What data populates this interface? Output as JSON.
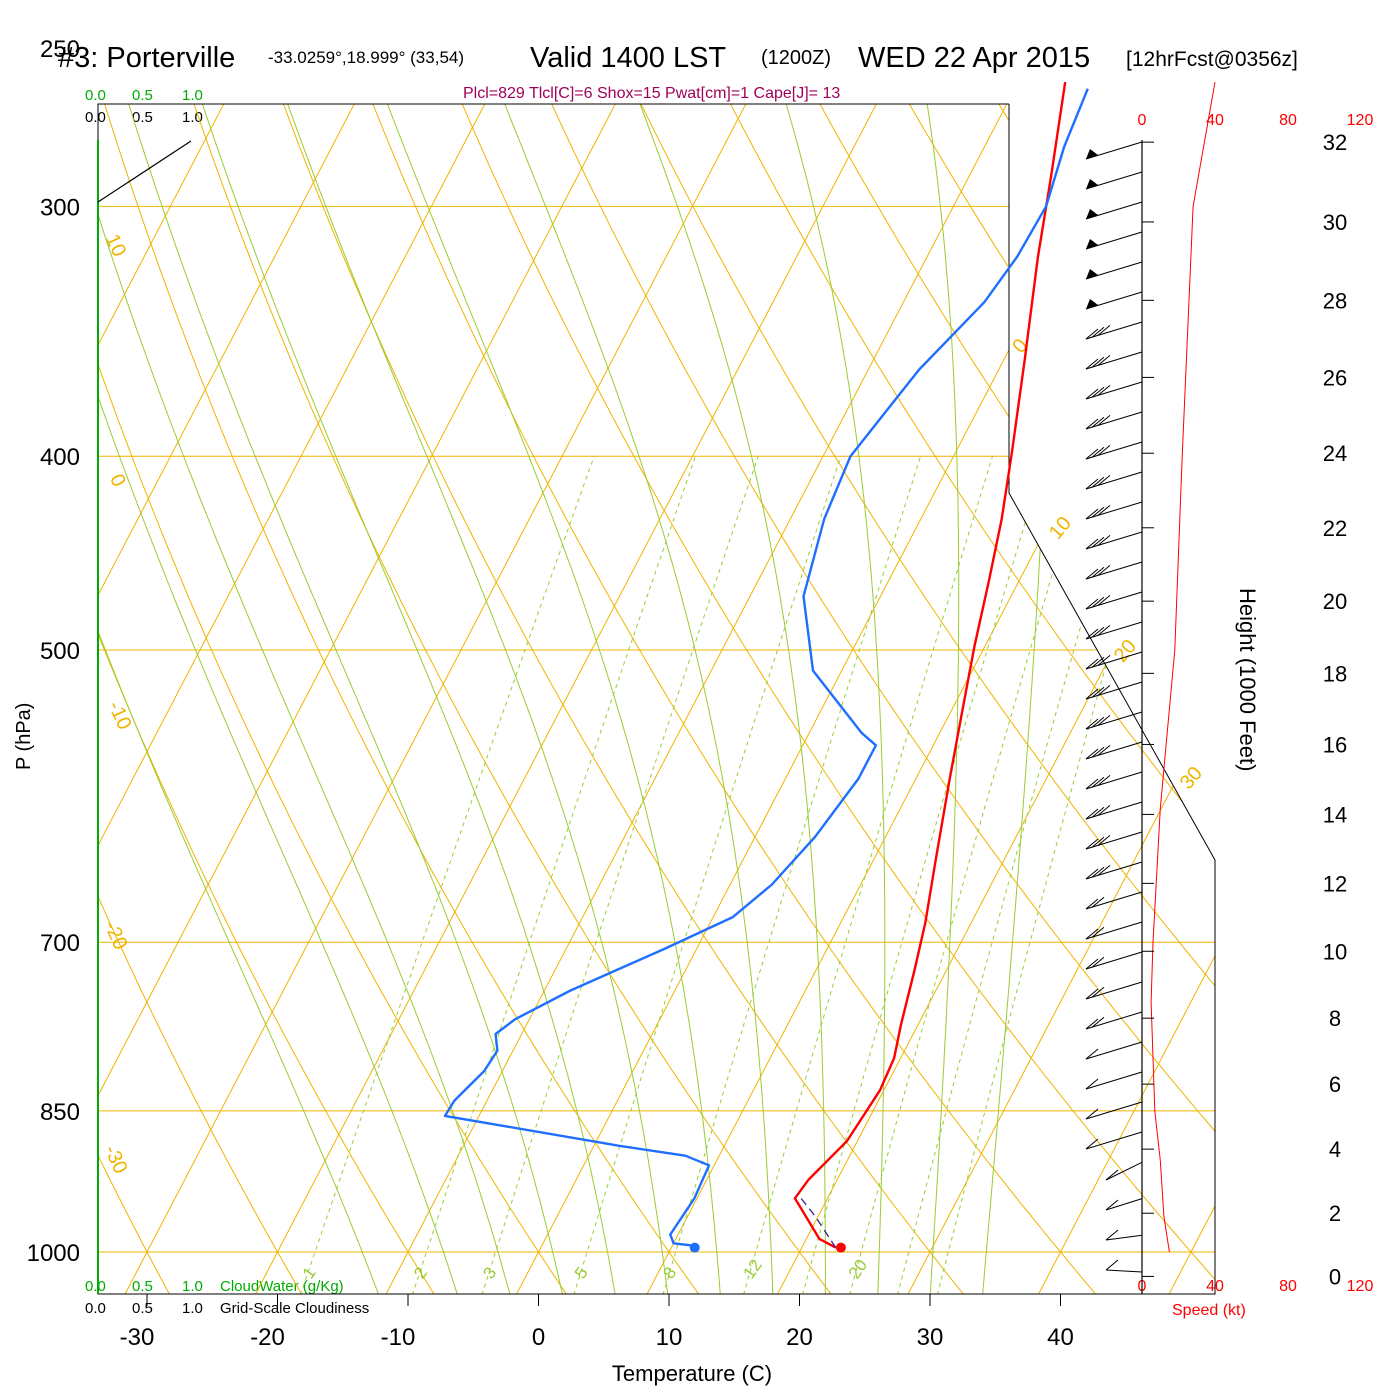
{
  "header": {
    "station": "#3: Porterville",
    "coords": "-33.0259°,18.999° (33,54)",
    "valid": "Valid 1400 LST",
    "utc": "(1200Z)",
    "date": "WED 22 Apr 2015",
    "forecast": "[12hrFcst@0356z]",
    "params": "Plcl=829 Tlcl[C]=6 Shox=15 Pwat[cm]=1 Cape[J]= 13"
  },
  "colors": {
    "temperature": "#ff0000",
    "dewpoint": "#1f6fff",
    "isotherm": "#f0b400",
    "dry_adiabat": "#f0b400",
    "moist_adiabat": "#99cc33",
    "mixing_ratio": "#99cc33",
    "cloud_scale": "#00aa00",
    "params_text": "#a0005a",
    "speed": "#ff0000"
  },
  "chart_data": {
    "type": "skew-t",
    "title": "#3: Porterville",
    "xlabel": "Temperature (C)",
    "ylabel": "P (hPa)",
    "y2label": "Height (1000 Feet)",
    "xlim": [
      -30,
      40
    ],
    "ylim": [
      1000,
      250
    ],
    "x_ticks": [
      "-30",
      "-20",
      "-10",
      "0",
      "10",
      "20",
      "30",
      "40"
    ],
    "y_ticks": [
      "250",
      "300",
      "400",
      "500",
      "700",
      "850",
      "1000"
    ],
    "height_ticks": [
      "0",
      "2",
      "4",
      "6",
      "8",
      "10",
      "12",
      "14",
      "16",
      "18",
      "20",
      "22",
      "24",
      "26",
      "28",
      "30",
      "32"
    ],
    "isobars": [
      250,
      300,
      400,
      500,
      700,
      850,
      1000
    ],
    "dry_adiabat_labels": [
      "10",
      "0",
      "-10",
      "-20",
      "-30",
      "0",
      "10",
      "20",
      "30"
    ],
    "mixing_ratio_labels": [
      "1",
      "2",
      "3",
      "5",
      "8",
      "12",
      "20"
    ],
    "cloud_scale_top_labels": [
      "0.0",
      "0.5",
      "1.0"
    ],
    "cloud_scale_bottom_labels": [
      "0.0",
      "0.5",
      "1.0"
    ],
    "cloudwater_label": "CloudWater (g/Kg)",
    "cloudiness_label": "Grid-Scale Cloudiness",
    "speed_label": "Speed (kt)",
    "speed_ticks": [
      "0",
      "40",
      "80",
      "120"
    ],
    "series": [
      {
        "name": "Temperature",
        "points": [
          [
            22.6,
            995
          ],
          [
            21,
            985
          ],
          [
            17.5,
            940
          ],
          [
            17.8,
            920
          ],
          [
            19.2,
            880
          ],
          [
            19.7,
            830
          ],
          [
            19.5,
            800
          ],
          [
            18.7,
            770
          ],
          [
            17.6,
            725
          ],
          [
            16.5,
            685
          ],
          [
            14.7,
            635
          ],
          [
            12.6,
            580
          ],
          [
            11,
            540
          ],
          [
            9.2,
            498
          ],
          [
            7.7,
            462
          ],
          [
            6.2,
            430
          ],
          [
            4.3,
            398
          ],
          [
            1.6,
            358
          ],
          [
            -1.5,
            318
          ],
          [
            -3.7,
            290
          ],
          [
            -6.4,
            260
          ]
        ]
      },
      {
        "name": "Dewpoint",
        "points": [
          [
            11.8,
            993
          ],
          [
            10,
            990
          ],
          [
            9.4,
            980
          ],
          [
            9.8,
            940
          ],
          [
            9.6,
            905
          ],
          [
            7.4,
            895
          ],
          [
            2,
            885
          ],
          [
            -12.6,
            855
          ],
          [
            -12.5,
            840
          ],
          [
            -11.4,
            812
          ],
          [
            -11.2,
            793
          ],
          [
            -12,
            778
          ],
          [
            -11.1,
            765
          ],
          [
            -8,
            740
          ],
          [
            -2.4,
            705
          ],
          [
            1.5,
            680
          ],
          [
            3.2,
            655
          ],
          [
            4.6,
            620
          ],
          [
            5.6,
            580
          ],
          [
            5.6,
            558
          ],
          [
            4,
            550
          ],
          [
            -2.2,
            512
          ],
          [
            -5.9,
            470
          ],
          [
            -7.4,
            430
          ],
          [
            -7.9,
            400
          ],
          [
            -6.1,
            362
          ],
          [
            -3.8,
            335
          ],
          [
            -3.1,
            318
          ],
          [
            -2.9,
            300
          ],
          [
            -3.9,
            280
          ],
          [
            -4.4,
            262
          ]
        ]
      },
      {
        "name": "Parcel",
        "points": [
          [
            22.6,
            995
          ],
          [
            19.8,
            960
          ],
          [
            17.5,
            935
          ]
        ]
      }
    ],
    "surface_temperature": 23,
    "surface_dewpoint": 11.8,
    "wind_speed_profile": [
      [
        15,
        1000
      ],
      [
        12,
        960
      ],
      [
        10,
        900
      ],
      [
        7,
        850
      ],
      [
        5,
        750
      ],
      [
        6,
        700
      ],
      [
        10,
        600
      ],
      [
        18,
        500
      ],
      [
        22,
        400
      ],
      [
        28,
        300
      ],
      [
        40,
        260
      ]
    ],
    "grid": true
  }
}
